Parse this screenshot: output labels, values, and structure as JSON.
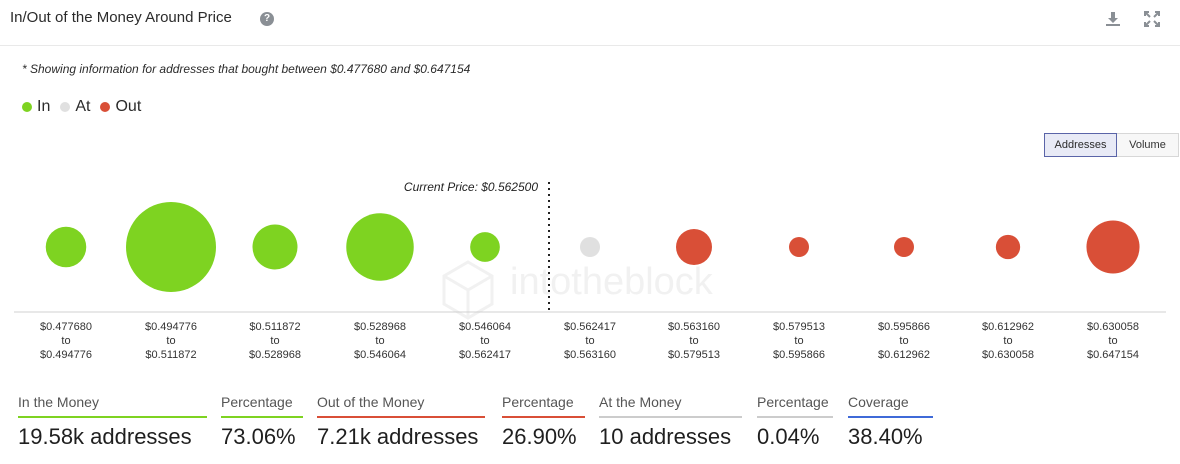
{
  "header": {
    "title": "In/Out of the Money Around Price",
    "help_icon": "question-circle-icon",
    "download_icon": "download-icon",
    "expand_icon": "expand-icon"
  },
  "note": "* Showing information for addresses that bought between $0.477680 and $0.647154",
  "legend": [
    {
      "label": "In",
      "color": "#7ed321"
    },
    {
      "label": "At",
      "color": "#e0e0e0"
    },
    {
      "label": "Out",
      "color": "#d94f37"
    }
  ],
  "toggle": {
    "addresses": "Addresses",
    "volume": "Volume",
    "selected": "Addresses"
  },
  "watermark": "intotheblock",
  "chart_data": {
    "type": "bubble",
    "current_price_label": "Current Price: $0.562500",
    "current_price_after_bucket_index": 4,
    "buckets": [
      {
        "from": "$0.477680",
        "to": "$0.494776",
        "status": "In",
        "relative_size": 0.45
      },
      {
        "from": "$0.494776",
        "to": "$0.511872",
        "status": "In",
        "relative_size": 1.0
      },
      {
        "from": "$0.511872",
        "to": "$0.528968",
        "status": "In",
        "relative_size": 0.5
      },
      {
        "from": "$0.528968",
        "to": "$0.546064",
        "status": "In",
        "relative_size": 0.75
      },
      {
        "from": "$0.546064",
        "to": "$0.562417",
        "status": "In",
        "relative_size": 0.33
      },
      {
        "from": "$0.562417",
        "to": "$0.563160",
        "status": "At",
        "relative_size": 0.05
      },
      {
        "from": "$0.563160",
        "to": "$0.579513",
        "status": "Out",
        "relative_size": 0.4
      },
      {
        "from": "$0.579513",
        "to": "$0.595866",
        "status": "Out",
        "relative_size": 0.13
      },
      {
        "from": "$0.595866",
        "to": "$0.612962",
        "status": "Out",
        "relative_size": 0.13
      },
      {
        "from": "$0.612962",
        "to": "$0.630058",
        "status": "Out",
        "relative_size": 0.27
      },
      {
        "from": "$0.630058",
        "to": "$0.647154",
        "status": "Out",
        "relative_size": 0.59
      }
    ],
    "to_word": "to"
  },
  "stats": [
    {
      "label": "In the Money",
      "value": "19.58k addresses",
      "color": "#7ed321"
    },
    {
      "label": "Percentage",
      "value": "73.06%",
      "color": "#7ed321"
    },
    {
      "label": "Out of the Money",
      "value": "7.21k addresses",
      "color": "#d94f37"
    },
    {
      "label": "Percentage",
      "value": "26.90%",
      "color": "#d94f37"
    },
    {
      "label": "At the Money",
      "value": "10 addresses",
      "color": "#cccccc"
    },
    {
      "label": "Percentage",
      "value": "0.04%",
      "color": "#cccccc"
    },
    {
      "label": "Coverage",
      "value": "38.40%",
      "color": "#3f6ad8"
    }
  ]
}
